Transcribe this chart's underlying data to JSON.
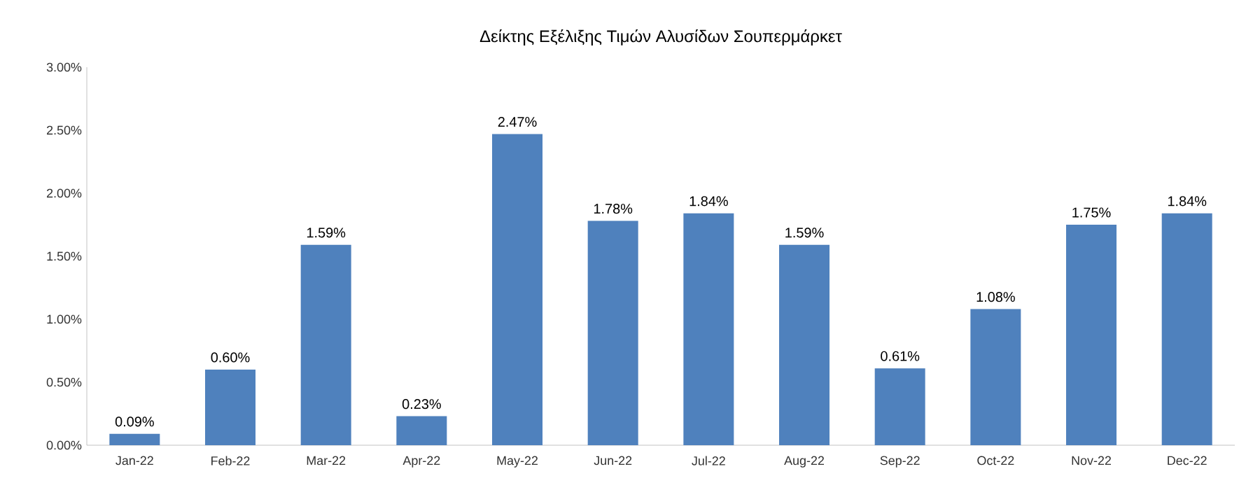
{
  "chart_data": {
    "type": "bar",
    "title": "Δείκτης Εξέλιξης Τιμών Αλυσίδων Σουπερμάρκετ",
    "categories": [
      "Jan-22",
      "Feb-22",
      "Mar-22",
      "Apr-22",
      "May-22",
      "Jun-22",
      "Jul-22",
      "Aug-22",
      "Sep-22",
      "Oct-22",
      "Nov-22",
      "Dec-22"
    ],
    "values": [
      0.09,
      0.6,
      1.59,
      0.23,
      2.47,
      1.78,
      1.84,
      1.59,
      0.61,
      1.08,
      1.75,
      1.84
    ],
    "value_labels": [
      "0.09%",
      "0.60%",
      "1.59%",
      "0.23%",
      "2.47%",
      "1.78%",
      "1.84%",
      "1.59%",
      "0.61%",
      "1.08%",
      "1.75%",
      "1.84%"
    ],
    "color": "#4f81bd",
    "ylim": [
      0,
      3
    ],
    "yticks": [
      {
        "value": 0,
        "label": "0.00%"
      },
      {
        "value": 0.5,
        "label": "0.50%"
      },
      {
        "value": 1,
        "label": "1.00%"
      },
      {
        "value": 1.5,
        "label": "1.50%"
      },
      {
        "value": 2,
        "label": "2.00%"
      },
      {
        "value": 2.5,
        "label": "2.50%"
      },
      {
        "value": 3,
        "label": "3.00%"
      }
    ]
  }
}
